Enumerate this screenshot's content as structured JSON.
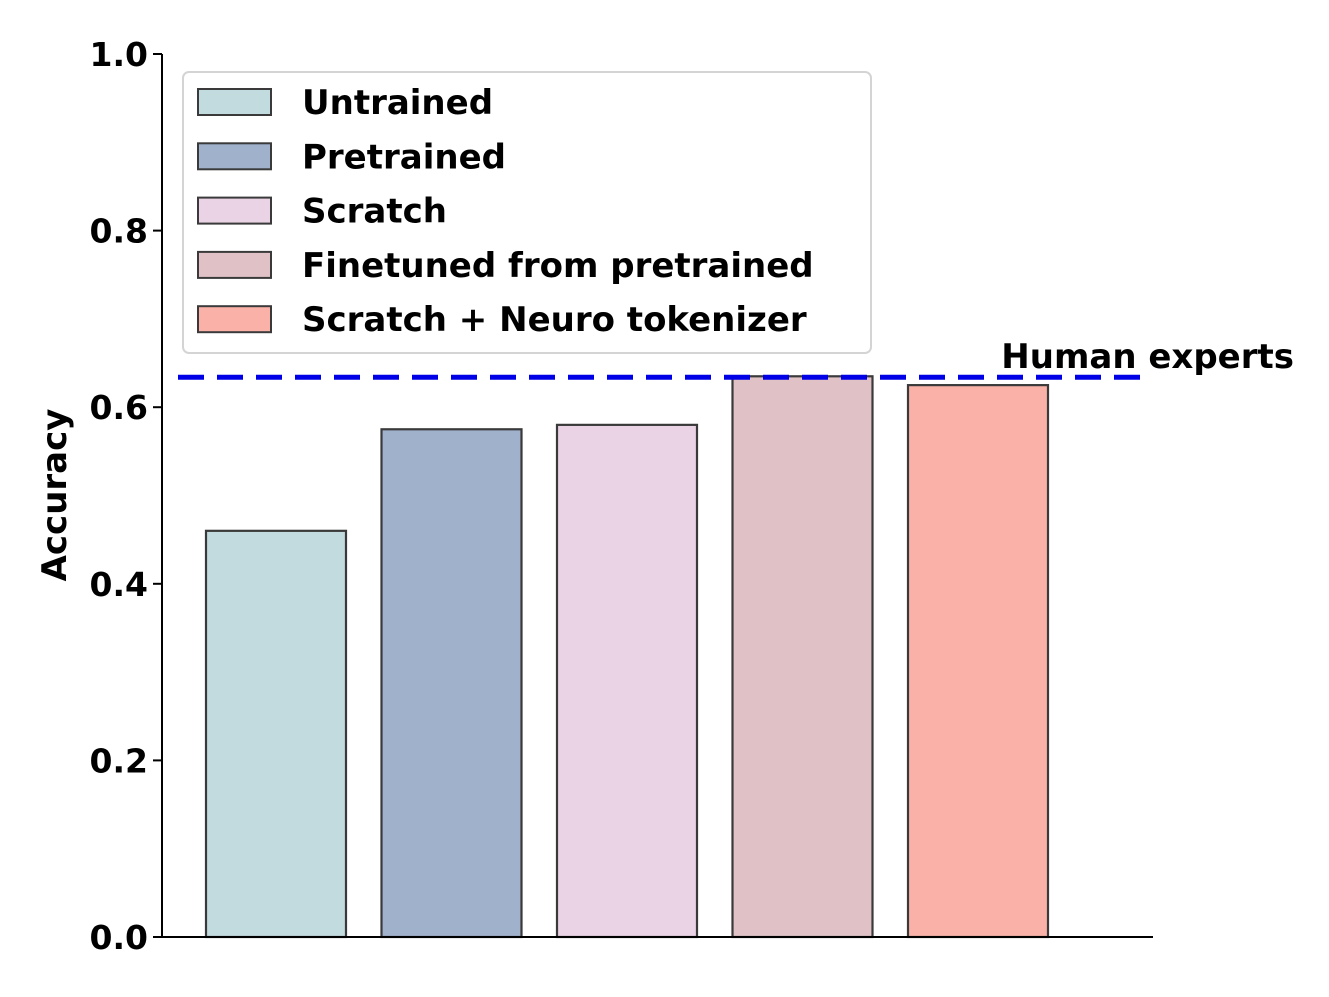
{
  "chart_data": {
    "type": "bar",
    "title": "",
    "xlabel": "",
    "ylabel": "Accuracy",
    "ylim": [
      0,
      1.0
    ],
    "yticks": [
      "0.0",
      "0.2",
      "0.4",
      "0.6",
      "0.8",
      "1.0"
    ],
    "grid": false,
    "legend_placement": "upper-left",
    "series": [
      {
        "name": "Untrained",
        "value": 0.46,
        "color": "#c2dbdf"
      },
      {
        "name": "Pretrained",
        "value": 0.575,
        "color": "#a0b1cc"
      },
      {
        "name": "Scratch",
        "value": 0.58,
        "color": "#e9d3e4"
      },
      {
        "name": "Finetuned from pretrained",
        "value": 0.635,
        "color": "#e0c2c6"
      },
      {
        "name": "Scratch + Neuro tokenizer",
        "value": 0.625,
        "color": "#fab2a8"
      }
    ],
    "reference_line": {
      "label": "Human experts",
      "value": 0.635,
      "color": "#0000e6",
      "style": "dashed"
    }
  }
}
